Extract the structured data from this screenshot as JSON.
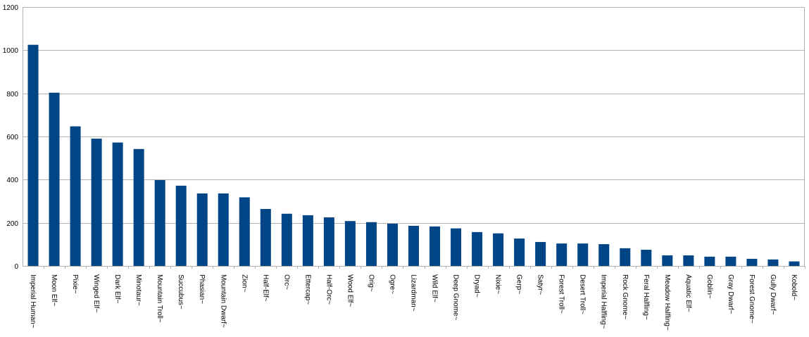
{
  "chart_data": {
    "type": "bar",
    "title": "",
    "xlabel": "",
    "ylabel": "",
    "ylim": [
      0,
      1200
    ],
    "yticks": [
      0,
      200,
      400,
      600,
      800,
      1000,
      1200
    ],
    "grid": true,
    "legend": "none",
    "bar_color": "#004586",
    "grid_color": "#b3b3b3",
    "categories": [
      "Imperial Human~",
      "Moon Elf~",
      "Pixie~",
      "Winged Elf~",
      "Dark Elf~",
      "Minotaur~",
      "Mountain Troll~",
      "Succubus~",
      "Phasian~",
      "Mountain Dwarf~",
      "Zion~",
      "Half-Elf~",
      "Orc~",
      "Ettercap~",
      "Half-Orc~",
      "Wood Elf~",
      "Orig~",
      "Ogre~",
      "Lizardman~",
      "Wild Elf~",
      "Deep Gnome~",
      "Dryad~",
      "Nixie~",
      "Gerp~",
      "Satyr~",
      "Forest Troll~",
      "Desert Troll~",
      "Imperial Halfling~",
      "Rock Gnome~",
      "Feral Halfling~",
      "Meadow Halfling~",
      "Aquatic Elf~",
      "Goblin~",
      "Gray Dwarf~",
      "Forest Gnome~",
      "Gully Dwarf~",
      "Kobold~"
    ],
    "values": [
      1025,
      803,
      647,
      590,
      572,
      542,
      398,
      372,
      336,
      336,
      318,
      264,
      242,
      235,
      225,
      208,
      203,
      196,
      186,
      183,
      174,
      157,
      151,
      127,
      111,
      104,
      104,
      101,
      82,
      75,
      49,
      49,
      43,
      43,
      33,
      30,
      21
    ]
  }
}
